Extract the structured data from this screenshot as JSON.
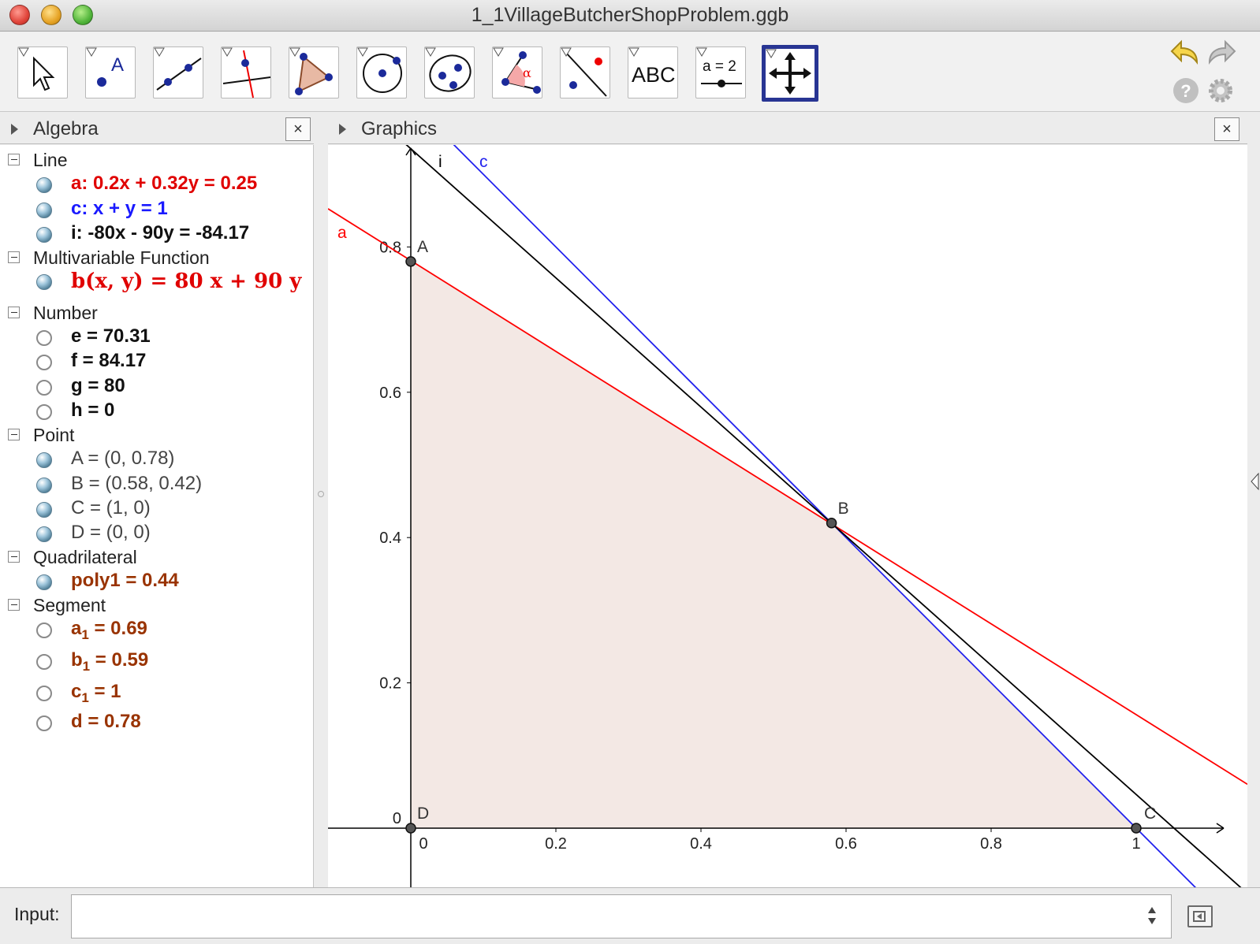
{
  "window": {
    "title": "1_1VillageButcherShopProblem.ggb"
  },
  "toolbar": {
    "tools": [
      {
        "name": "move-tool",
        "icon": "cursor-arrow-icon"
      },
      {
        "name": "point-tool",
        "icon": "point-icon",
        "label": "A"
      },
      {
        "name": "line-tool",
        "icon": "line-through-points-icon"
      },
      {
        "name": "perpendicular-tool",
        "icon": "perpendicular-line-icon"
      },
      {
        "name": "polygon-tool",
        "icon": "polygon-icon"
      },
      {
        "name": "circle-tool",
        "icon": "circle-center-point-icon"
      },
      {
        "name": "conic-tool",
        "icon": "ellipse-icon"
      },
      {
        "name": "angle-tool",
        "icon": "angle-icon",
        "label": "α"
      },
      {
        "name": "reflect-tool",
        "icon": "reflect-about-line-icon"
      },
      {
        "name": "text-tool",
        "icon": "text-icon",
        "label": "ABC"
      },
      {
        "name": "slider-tool",
        "icon": "slider-icon",
        "label": "a = 2"
      },
      {
        "name": "move-graphics-tool",
        "icon": "move-graphics-view-icon"
      }
    ],
    "active_tool": "move-graphics-tool"
  },
  "algebra": {
    "title": "Algebra",
    "groups": [
      {
        "label": "Line",
        "items": [
          {
            "text": "a: 0.2x + 0.32y = 0.25",
            "color": "#e00000",
            "visible": true
          },
          {
            "text": "c: x + y = 1",
            "color": "#1a1aff",
            "visible": true
          },
          {
            "text": "i: -80x - 90y = -84.17",
            "color": "#111111",
            "visible": true
          }
        ]
      },
      {
        "label": "Multivariable Function",
        "items": [
          {
            "text": "b(x, y)  =  80 x + 90 y",
            "color": "#e00000",
            "visible": true,
            "math": true
          }
        ]
      },
      {
        "label": "Number",
        "items": [
          {
            "text": "e  =  70.31",
            "color": "#111111",
            "visible": false
          },
          {
            "text": "f  =  84.17",
            "color": "#111111",
            "visible": false
          },
          {
            "text": "g  =  80",
            "color": "#111111",
            "visible": false
          },
          {
            "text": "h  =  0",
            "color": "#111111",
            "visible": false
          }
        ]
      },
      {
        "label": "Point",
        "items": [
          {
            "text": "A  =  (0, 0.78)",
            "color": "#444444",
            "visible": true
          },
          {
            "text": "B  =  (0.58, 0.42)",
            "color": "#444444",
            "visible": true
          },
          {
            "text": "C  =  (1, 0)",
            "color": "#444444",
            "visible": true
          },
          {
            "text": "D  =  (0, 0)",
            "color": "#444444",
            "visible": true
          }
        ]
      },
      {
        "label": "Quadrilateral",
        "items": [
          {
            "text": "poly1  =  0.44",
            "color": "#993300",
            "visible": true
          }
        ]
      },
      {
        "label": "Segment",
        "items": [
          {
            "base": "a",
            "sub": "1",
            "rest": "  =  0.69",
            "color": "#993300",
            "visible": false
          },
          {
            "base": "b",
            "sub": "1",
            "rest": "  =  0.59",
            "color": "#993300",
            "visible": false
          },
          {
            "base": "c",
            "sub": "1",
            "rest": "  =  1",
            "color": "#993300",
            "visible": false
          },
          {
            "text": "d  =  0.78",
            "color": "#993300",
            "visible": false
          }
        ]
      }
    ]
  },
  "graphics": {
    "title": "Graphics",
    "x_ticks": [
      "0",
      "0.2",
      "0.4",
      "0.6",
      "0.8",
      "1"
    ],
    "y_ticks": [
      "0",
      "0.2",
      "0.4",
      "0.6",
      "0.8"
    ],
    "lines": [
      {
        "label": "a",
        "eq": [
          0.2,
          0.32,
          0.25
        ],
        "color": "#ff0000"
      },
      {
        "label": "c",
        "eq": [
          1,
          1,
          1
        ],
        "color": "#2222ee"
      },
      {
        "label": "i",
        "eq": [
          -80,
          -90,
          -84.17
        ],
        "color": "#000000"
      }
    ],
    "points": [
      {
        "label": "A",
        "x": 0,
        "y": 0.78
      },
      {
        "label": "B",
        "x": 0.58,
        "y": 0.42
      },
      {
        "label": "C",
        "x": 1,
        "y": 0
      },
      {
        "label": "D",
        "x": 0,
        "y": 0
      }
    ],
    "polygon": {
      "name": "poly1",
      "fill": "#f3e8e4",
      "vertices": [
        "A",
        "B",
        "C",
        "D"
      ]
    }
  },
  "input": {
    "label": "Input:",
    "value": ""
  }
}
